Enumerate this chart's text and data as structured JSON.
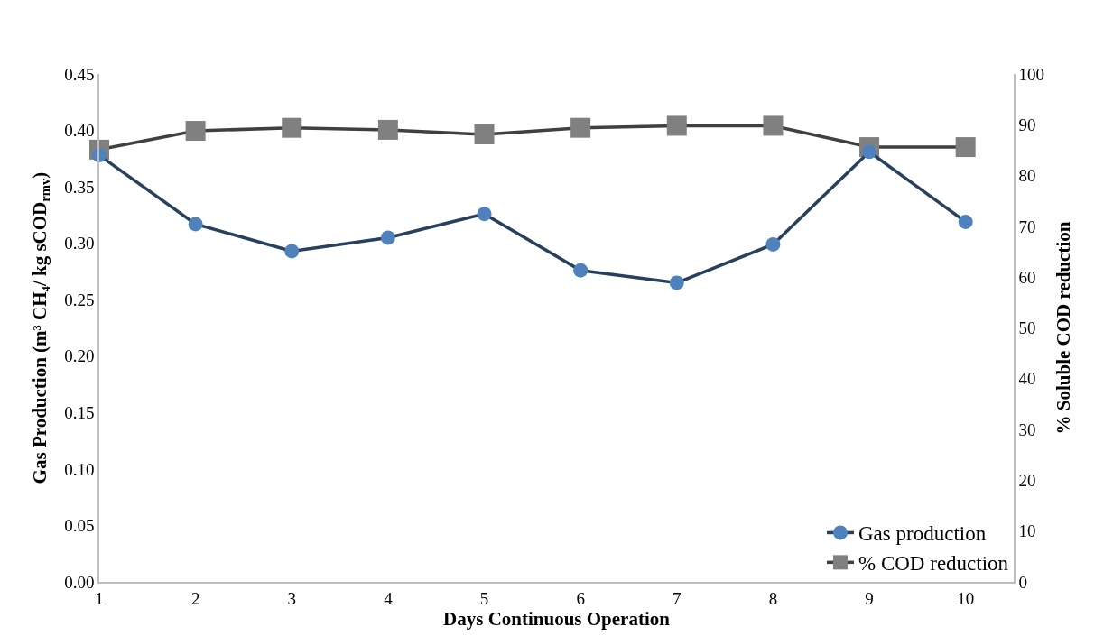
{
  "chart_data": {
    "type": "line",
    "xlabel": "Days Continuous Operation",
    "ylabel": "Gas Production (m³ CH₄/ kg sCOD$_{rmv}$)",
    "y2label": "% Soluble COD reduction",
    "x": [
      1,
      2,
      3,
      4,
      5,
      6,
      7,
      8,
      9,
      10
    ],
    "xlim": [
      1,
      10.5
    ],
    "xticks": [
      1,
      2,
      3,
      4,
      5,
      6,
      7,
      8,
      9,
      10
    ],
    "ylim": [
      0,
      0.45
    ],
    "yticks": [
      {
        "value": 0,
        "label": "0.00"
      },
      {
        "value": 0.05,
        "label": "0.05"
      },
      {
        "value": 0.1,
        "label": "0.10"
      },
      {
        "value": 0.15,
        "label": "0.15"
      },
      {
        "value": 0.2,
        "label": "0.20"
      },
      {
        "value": 0.25,
        "label": "0.25"
      },
      {
        "value": 0.3,
        "label": "0.30"
      },
      {
        "value": 0.35,
        "label": "0.35"
      },
      {
        "value": 0.4,
        "label": "0.40"
      },
      {
        "value": 0.45,
        "label": "0.45"
      }
    ],
    "y2lim": [
      0,
      100
    ],
    "y2ticks": [
      0,
      10,
      20,
      30,
      40,
      50,
      60,
      70,
      80,
      90,
      100
    ],
    "series": [
      {
        "name": "Gas production",
        "color": "#4f81bd",
        "marker": "circle",
        "values": [
          0.378,
          0.317,
          0.293,
          0.305,
          0.326,
          0.276,
          0.265,
          0.299,
          0.381,
          0.319
        ]
      },
      {
        "name": "% COD reduction",
        "color": "#808080",
        "marker": "square",
        "axis": "y2",
        "values": [
          85.1,
          88.8,
          89.4,
          89.0,
          88.1,
          89.4,
          89.8,
          89.8,
          85.6,
          85.6
        ]
      }
    ],
    "legend": "bottom right"
  }
}
